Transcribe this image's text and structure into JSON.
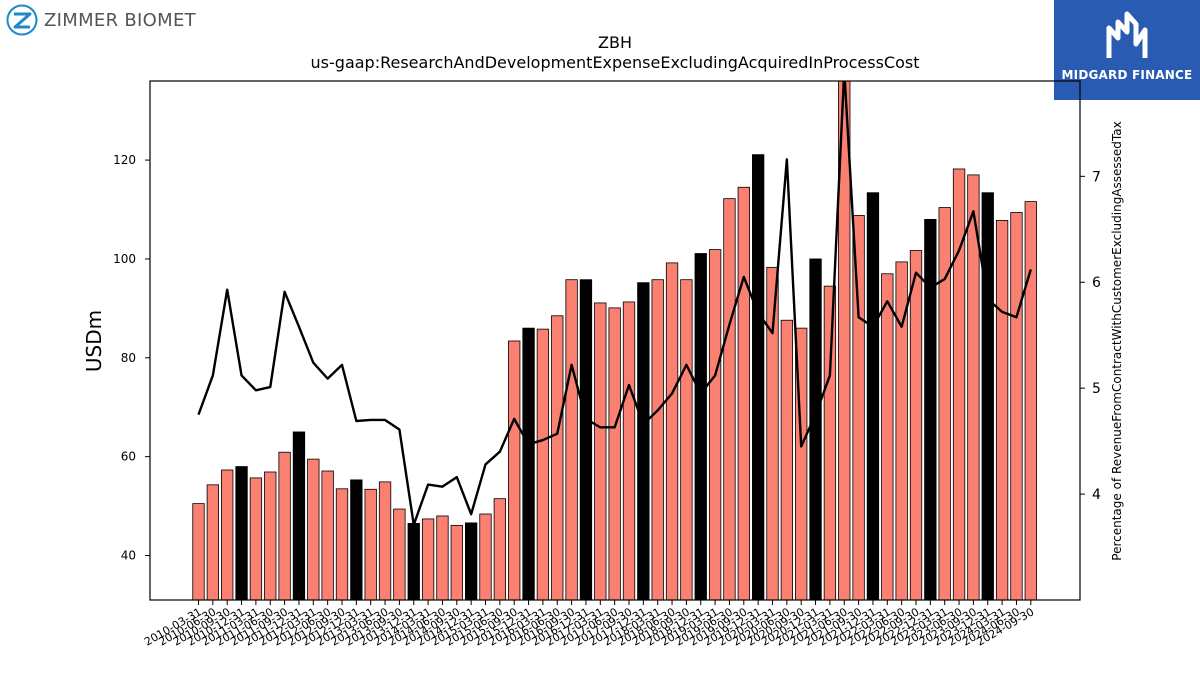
{
  "logos": {
    "left_text": "ZIMMER BIOMET",
    "right_text": "MIDGARD FINANCE"
  },
  "chart_data": {
    "type": "bar",
    "title": "ZBH",
    "subtitle": "us-gaap:ResearchAndDevelopmentExpenseExcludingAcquiredInProcessCost",
    "ylabel": "USDm",
    "ylabel_right": "Percentage of RevenueFromContractWithCustomerExcludingAssessedTax",
    "ylim": [
      31,
      136
    ],
    "ylim_right": [
      3.0,
      7.9
    ],
    "yticks": [
      40,
      60,
      80,
      100,
      120
    ],
    "yticks_right": [
      4,
      5,
      6,
      7
    ],
    "grid": false,
    "categories": [
      "2010-03-31",
      "2010-06-30",
      "2010-09-30",
      "2010-12-31",
      "2011-03-31",
      "2011-06-30",
      "2011-09-30",
      "2011-12-31",
      "2012-03-31",
      "2012-06-30",
      "2012-09-30",
      "2012-12-31",
      "2013-03-31",
      "2013-06-30",
      "2013-09-30",
      "2013-12-31",
      "2014-03-31",
      "2014-06-30",
      "2014-09-30",
      "2014-12-31",
      "2015-03-31",
      "2015-06-30",
      "2015-09-30",
      "2015-12-31",
      "2016-03-31",
      "2016-06-30",
      "2016-09-30",
      "2016-12-31",
      "2017-03-31",
      "2017-06-30",
      "2017-09-30",
      "2017-12-31",
      "2018-03-31",
      "2018-06-30",
      "2018-09-30",
      "2018-12-31",
      "2019-03-31",
      "2019-06-30",
      "2019-09-30",
      "2019-12-31",
      "2020-03-31",
      "2020-06-30",
      "2020-09-30",
      "2020-12-31",
      "2021-03-31",
      "2021-06-30",
      "2021-09-30",
      "2021-12-31",
      "2022-03-31",
      "2022-06-30",
      "2022-09-30",
      "2022-12-31",
      "2023-03-31",
      "2023-06-30",
      "2023-09-30",
      "2023-12-31",
      "2024-03-31",
      "2024-06-30",
      "2024-09-30"
    ],
    "series": [
      {
        "type": "bar",
        "color": "#fa8072",
        "highlight_color": "#000000",
        "values": [
          50.5,
          54.3,
          57.3,
          58.0,
          55.7,
          56.9,
          60.9,
          65.0,
          59.5,
          57.1,
          53.5,
          55.3,
          53.4,
          54.9,
          49.4,
          46.5,
          47.4,
          48.0,
          46.1,
          46.6,
          48.4,
          51.5,
          83.4,
          86.0,
          85.8,
          88.5,
          95.8,
          95.8,
          91.1,
          90.1,
          91.3,
          95.2,
          95.8,
          99.2,
          95.8,
          101.1,
          101.9,
          112.2,
          114.5,
          121.1,
          98.3,
          87.6,
          86.0,
          100.0,
          94.5,
          137.0,
          108.8,
          113.4,
          97.0,
          99.4,
          101.7,
          108.0,
          110.4,
          118.2,
          117.0,
          113.4,
          107.8,
          109.4,
          111.6
        ],
        "highlighted": [
          false,
          false,
          false,
          true,
          false,
          false,
          false,
          true,
          false,
          false,
          false,
          true,
          false,
          false,
          false,
          true,
          false,
          false,
          false,
          true,
          false,
          false,
          false,
          true,
          false,
          false,
          false,
          true,
          false,
          false,
          false,
          true,
          false,
          false,
          false,
          true,
          false,
          false,
          false,
          true,
          false,
          false,
          false,
          true,
          false,
          false,
          false,
          true,
          false,
          false,
          false,
          true,
          false,
          false,
          false,
          true,
          false,
          false,
          false
        ]
      },
      {
        "type": "line",
        "axis": "right",
        "color": "#000000",
        "values": [
          4.75,
          5.12,
          5.93,
          5.12,
          4.98,
          5.01,
          5.91,
          5.58,
          5.24,
          5.09,
          5.22,
          4.69,
          4.7,
          4.7,
          4.61,
          3.71,
          4.09,
          4.07,
          4.16,
          3.81,
          4.28,
          4.4,
          4.71,
          4.47,
          4.51,
          4.57,
          5.22,
          4.71,
          4.63,
          4.63,
          5.03,
          4.66,
          4.79,
          4.95,
          5.22,
          4.95,
          5.12,
          5.6,
          6.05,
          5.71,
          5.52,
          7.16,
          4.45,
          4.75,
          5.12,
          8.0,
          5.67,
          5.58,
          5.82,
          5.58,
          6.09,
          5.95,
          6.03,
          6.3,
          6.67,
          5.84,
          5.72,
          5.67,
          6.12
        ]
      }
    ]
  }
}
